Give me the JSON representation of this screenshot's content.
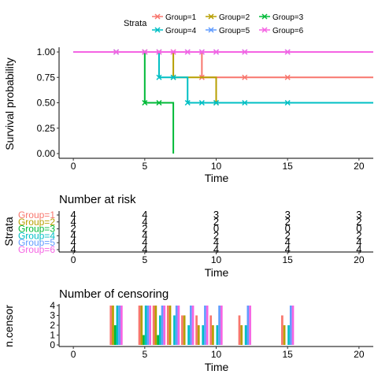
{
  "legend": {
    "title": "Strata",
    "placement": "top",
    "entries": [
      {
        "label": "Group=1",
        "color": "#F8766D"
      },
      {
        "label": "Group=2",
        "color": "#B79F00"
      },
      {
        "label": "Group=3",
        "color": "#00BA38"
      },
      {
        "label": "Group=4",
        "color": "#00BFC4"
      },
      {
        "label": "Group=5",
        "color": "#619CFF"
      },
      {
        "label": "Group=6",
        "color": "#F564E3"
      }
    ]
  },
  "chart_data": [
    {
      "type": "line",
      "subtype": "kaplan-meier",
      "title": "",
      "xlabel": "Time",
      "ylabel": "Survival probability",
      "xlim": [
        -1,
        21
      ],
      "ylim": [
        0,
        1
      ],
      "xticks": [
        0,
        5,
        10,
        15,
        20
      ],
      "yticks": [
        0,
        0.25,
        0.5,
        0.75,
        1
      ],
      "ytick_labels": [
        "0.00",
        "0.25",
        "0.50",
        "0.75",
        "1.00"
      ],
      "series": [
        {
          "name": "Group=1",
          "color": "#F8766D",
          "steps": [
            [
              0,
              1
            ],
            [
              9,
              0.75
            ]
          ],
          "end": 21,
          "censor": [
            [
              5,
              1
            ],
            [
              7,
              1
            ],
            [
              9,
              0.75
            ],
            [
              12,
              0.75
            ],
            [
              15,
              0.75
            ]
          ]
        },
        {
          "name": "Group=2",
          "color": "#B79F00",
          "steps": [
            [
              0,
              1
            ],
            [
              7,
              0.75
            ],
            [
              10,
              0.5
            ]
          ],
          "end": 21,
          "censor": [
            [
              5,
              1
            ],
            [
              6,
              1
            ],
            [
              7,
              0.75
            ],
            [
              10,
              0.5
            ]
          ]
        },
        {
          "name": "Group=3",
          "color": "#00BA38",
          "steps": [
            [
              0,
              1
            ],
            [
              5,
              0.5
            ],
            [
              7,
              0
            ]
          ],
          "end": 7,
          "censor": [
            [
              3,
              1
            ],
            [
              5,
              0.5
            ],
            [
              6,
              0.5
            ]
          ]
        },
        {
          "name": "Group=4",
          "color": "#00BFC4",
          "steps": [
            [
              0,
              1
            ],
            [
              6,
              0.75
            ],
            [
              8,
              0.5
            ]
          ],
          "end": 21,
          "censor": [
            [
              6,
              0.75
            ],
            [
              7,
              0.75
            ],
            [
              8,
              0.5
            ],
            [
              9,
              0.5
            ],
            [
              10,
              0.5
            ],
            [
              12,
              0.5
            ],
            [
              15,
              0.5
            ]
          ]
        },
        {
          "name": "Group=5",
          "color": "#619CFF",
          "steps": [
            [
              0,
              1
            ]
          ],
          "end": 21,
          "censor": [
            [
              3,
              1
            ],
            [
              5,
              1
            ],
            [
              6,
              1
            ],
            [
              8,
              1
            ],
            [
              9,
              1
            ],
            [
              10,
              1
            ],
            [
              12,
              1
            ],
            [
              15,
              1
            ]
          ]
        },
        {
          "name": "Group=6",
          "color": "#F564E3",
          "steps": [
            [
              0,
              1
            ]
          ],
          "end": 21,
          "censor": [
            [
              3,
              1
            ],
            [
              5,
              1
            ],
            [
              6,
              1
            ],
            [
              7,
              1
            ],
            [
              8,
              1
            ],
            [
              9,
              1
            ],
            [
              10,
              1
            ],
            [
              12,
              1
            ],
            [
              15,
              1
            ]
          ]
        }
      ]
    },
    {
      "type": "table",
      "title": "Number at risk",
      "xlabel": "Time",
      "ylabel": "Strata",
      "xticks": [
        0,
        5,
        10,
        15,
        20
      ],
      "x": [
        0,
        5,
        10,
        15,
        20
      ],
      "rows": [
        {
          "name": "Group=1",
          "color": "#F8766D",
          "values": [
            "4",
            "4",
            "3",
            "3",
            "3"
          ]
        },
        {
          "name": "Group=2",
          "color": "#B79F00",
          "values": [
            "4",
            "4",
            "2",
            "2",
            "2"
          ]
        },
        {
          "name": "Group=3",
          "color": "#00BA38",
          "values": [
            "2",
            "2",
            "0",
            "0",
            "0"
          ]
        },
        {
          "name": "Group=4",
          "color": "#00BFC4",
          "values": [
            "4",
            "4",
            "2",
            "2",
            "2"
          ]
        },
        {
          "name": "Group=5",
          "color": "#619CFF",
          "values": [
            "4",
            "4",
            "4",
            "4",
            "4"
          ]
        },
        {
          "name": "Group=6",
          "color": "#F564E3",
          "values": [
            "4",
            "4",
            "4",
            "4",
            "4"
          ]
        }
      ]
    },
    {
      "type": "bar",
      "title": "Number of censoring",
      "xlabel": "Time",
      "ylabel": "n.censor",
      "xlim": [
        -1,
        21
      ],
      "ylim": [
        0,
        4
      ],
      "xticks": [
        0,
        5,
        10,
        15,
        20
      ],
      "yticks": [
        0,
        1,
        2,
        3,
        4
      ],
      "times": [
        3,
        5,
        6,
        7,
        8,
        9,
        10,
        12,
        15
      ],
      "series": [
        {
          "name": "Group=1",
          "color": "#F8766D",
          "values": [
            4,
            4,
            4,
            4,
            3,
            3,
            3,
            3,
            3
          ]
        },
        {
          "name": "Group=2",
          "color": "#B79F00",
          "values": [
            4,
            4,
            4,
            4,
            3,
            2,
            2,
            2,
            2
          ]
        },
        {
          "name": "Group=3",
          "color": "#00BA38",
          "values": [
            2,
            1,
            1,
            0,
            0,
            0,
            0,
            0,
            0
          ]
        },
        {
          "name": "Group=4",
          "color": "#00BFC4",
          "values": [
            4,
            4,
            3,
            3,
            2,
            2,
            2,
            2,
            2
          ]
        },
        {
          "name": "Group=5",
          "color": "#619CFF",
          "values": [
            4,
            4,
            4,
            4,
            4,
            4,
            4,
            4,
            4
          ]
        },
        {
          "name": "Group=6",
          "color": "#F564E3",
          "values": [
            4,
            4,
            4,
            4,
            4,
            4,
            4,
            4,
            4
          ]
        }
      ]
    }
  ]
}
